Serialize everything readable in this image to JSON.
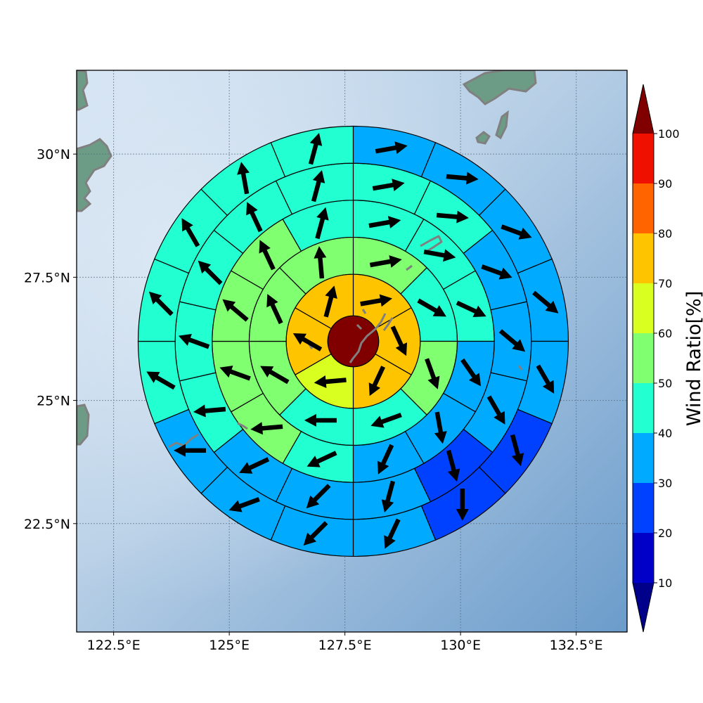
{
  "chart_data": {
    "type": "heatmap",
    "title": "",
    "map": {
      "lon_range": [
        121.7,
        133.6
      ],
      "lat_range": [
        20.3,
        31.7
      ],
      "grid": true,
      "center": {
        "lon": 127.68,
        "lat": 26.2
      },
      "ring_radii_deg": [
        0.55,
        1.45,
        2.25,
        3.05,
        3.85,
        4.65
      ]
    },
    "x_ticks": [
      {
        "value": 122.5,
        "label": "122.5°E"
      },
      {
        "value": 125.0,
        "label": "125°E"
      },
      {
        "value": 127.5,
        "label": "127.5°E"
      },
      {
        "value": 130.0,
        "label": "130°E"
      },
      {
        "value": 132.5,
        "label": "132.5°E"
      }
    ],
    "y_ticks": [
      {
        "value": 30.0,
        "label": "30°N"
      },
      {
        "value": 27.5,
        "label": "27.5°N"
      },
      {
        "value": 25.0,
        "label": "25°N"
      },
      {
        "value": 22.5,
        "label": "22.5°N"
      }
    ],
    "colorbar": {
      "label": "Wind Ratio[%]",
      "levels": [
        10,
        20,
        30,
        40,
        50,
        60,
        70,
        80,
        90,
        100
      ],
      "colors": [
        "#0000c8",
        "#0040ff",
        "#00aaff",
        "#22ffd0",
        "#80ff70",
        "#d8ff20",
        "#ffc400",
        "#ff6400",
        "#f01000"
      ],
      "under_color": "#00008a",
      "over_color": "#800000"
    },
    "center_cell": {
      "value": 100
    },
    "rings": [
      {
        "sectors": 6,
        "values": [
          72,
          72,
          72,
          62,
          72,
          72
        ],
        "directions": [
          80,
          155,
          205,
          265,
          300,
          15
        ]
      },
      {
        "sectors": 8,
        "values": [
          55,
          45,
          52,
          45,
          45,
          55,
          55,
          55
        ],
        "directions": [
          80,
          120,
          160,
          250,
          270,
          300,
          335,
          355
        ]
      },
      {
        "sectors": 12,
        "values": [
          45,
          45,
          45,
          38,
          38,
          38,
          45,
          55,
          55,
          55,
          55,
          45
        ],
        "directions": [
          80,
          100,
          115,
          145,
          170,
          205,
          245,
          265,
          290,
          310,
          335,
          15
        ]
      },
      {
        "sectors": 14,
        "values": [
          45,
          45,
          38,
          38,
          38,
          25,
          38,
          38,
          38,
          45,
          45,
          45,
          45,
          45
        ],
        "directions": [
          80,
          95,
          110,
          130,
          150,
          165,
          195,
          225,
          245,
          265,
          290,
          315,
          335,
          15
        ]
      },
      {
        "sectors": 16,
        "values": [
          38,
          38,
          38,
          38,
          38,
          25,
          25,
          38,
          38,
          38,
          38,
          45,
          45,
          45,
          45,
          45
        ],
        "directions": [
          80,
          95,
          110,
          130,
          150,
          165,
          180,
          205,
          225,
          250,
          270,
          300,
          315,
          330,
          350,
          15
        ]
      }
    ]
  }
}
